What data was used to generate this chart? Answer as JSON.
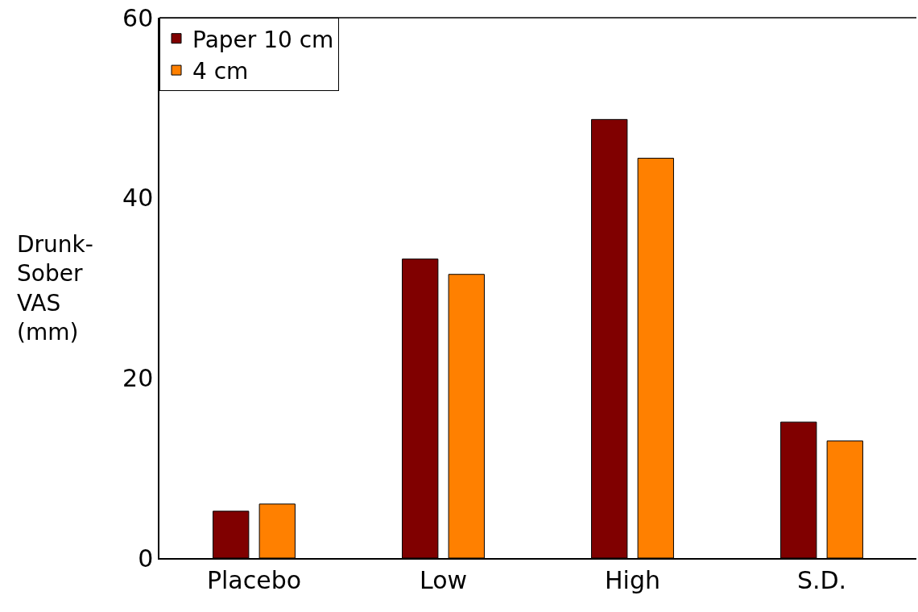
{
  "chart_data": {
    "type": "bar",
    "ylabel": "Drunk-\nSober\nVAS\n(mm)",
    "categories": [
      "Placebo",
      "Low",
      "High",
      "S.D."
    ],
    "series": [
      {
        "name": "Paper 10 cm",
        "color": "#800000",
        "values": [
          5.2,
          33.2,
          48.7,
          15.1
        ]
      },
      {
        "name": "4 cm",
        "color": "#ff8000",
        "values": [
          6.0,
          31.5,
          44.4,
          13.0
        ]
      }
    ],
    "ylim": [
      0,
      60
    ],
    "yticks": [
      0,
      20,
      40,
      60
    ],
    "legend": "top left"
  }
}
